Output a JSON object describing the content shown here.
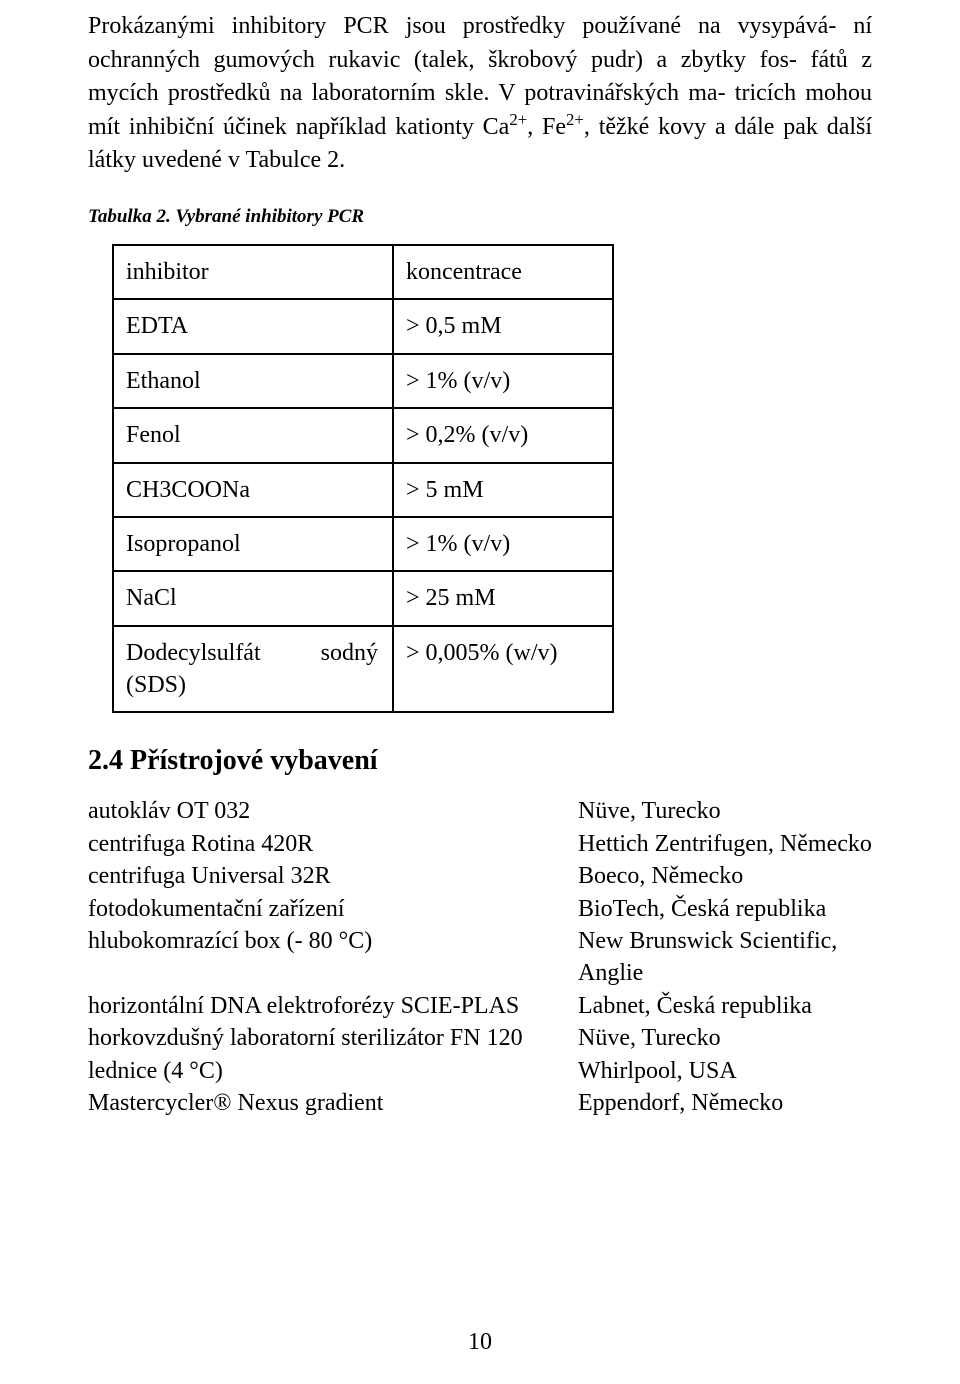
{
  "paragraph1": "Prokázanými inhibitory PCR jsou prostředky používané na vysypává-\nní ochranných gumových rukavic (talek, škrobový pudr) a zbytky fos-\nfátů z mycích prostředků na laboratorním skle. V potravinářských ma-\ntricích mohou mít inhibiční účinek například kationty Ca",
  "sup1": "2+",
  "mid1": ", Fe",
  "sup2": "2+",
  "paragraph1b": ", těžké kovy a dále pak další látky uvedené v Tabulce 2.",
  "table_caption": "Tabulka 2. Vybrané inhibitory PCR",
  "table": {
    "header": {
      "c1": "inhibitor",
      "c2": "koncentrace"
    },
    "rows": [
      {
        "c1": "EDTA",
        "c2": "> 0,5 mM"
      },
      {
        "c1": "Ethanol",
        "c2": "> 1% (v/v)"
      },
      {
        "c1": "Fenol",
        "c2": "> 0,2% (v/v)"
      },
      {
        "c1": "CH3COONa",
        "c2": "> 5 mM"
      },
      {
        "c1": "Isopropanol",
        "c2": "> 1% (v/v)"
      },
      {
        "c1": "NaCl",
        "c2": "> 25 mM"
      },
      {
        "c1": "Dodecylsulfát sodný (SDS)",
        "c2": "> 0,005% (w/v)"
      }
    ]
  },
  "heading": "2.4  Přístrojové vybavení",
  "equipment": [
    {
      "l": "autokláv OT 032",
      "r": "Nüve, Turecko"
    },
    {
      "l": "centrifuga Rotina 420R",
      "r": "Hettich Zentrifugen, Německo"
    },
    {
      "l": "centrifuga Universal 32R",
      "r": "Boeco, Německo"
    },
    {
      "l": "fotodokumentační zařízení",
      "r": "BioTech, Česká republika"
    },
    {
      "l": "hlubokomrazící box (- 80 °C)",
      "r": "New Brunswick Scientific, Anglie"
    },
    {
      "l": "horizontální DNA elektroforézy SCIE-PLAS",
      "r": "Labnet, Česká republika"
    },
    {
      "l": "horkovzdušný laboratorní sterilizátor FN 120",
      "r": "Nüve, Turecko"
    },
    {
      "l": "lednice (4 °C)",
      "r": "Whirlpool, USA"
    },
    {
      "l": "Mastercycler® Nexus gradient",
      "r": "Eppendorf, Německo"
    }
  ],
  "page_number": "10"
}
